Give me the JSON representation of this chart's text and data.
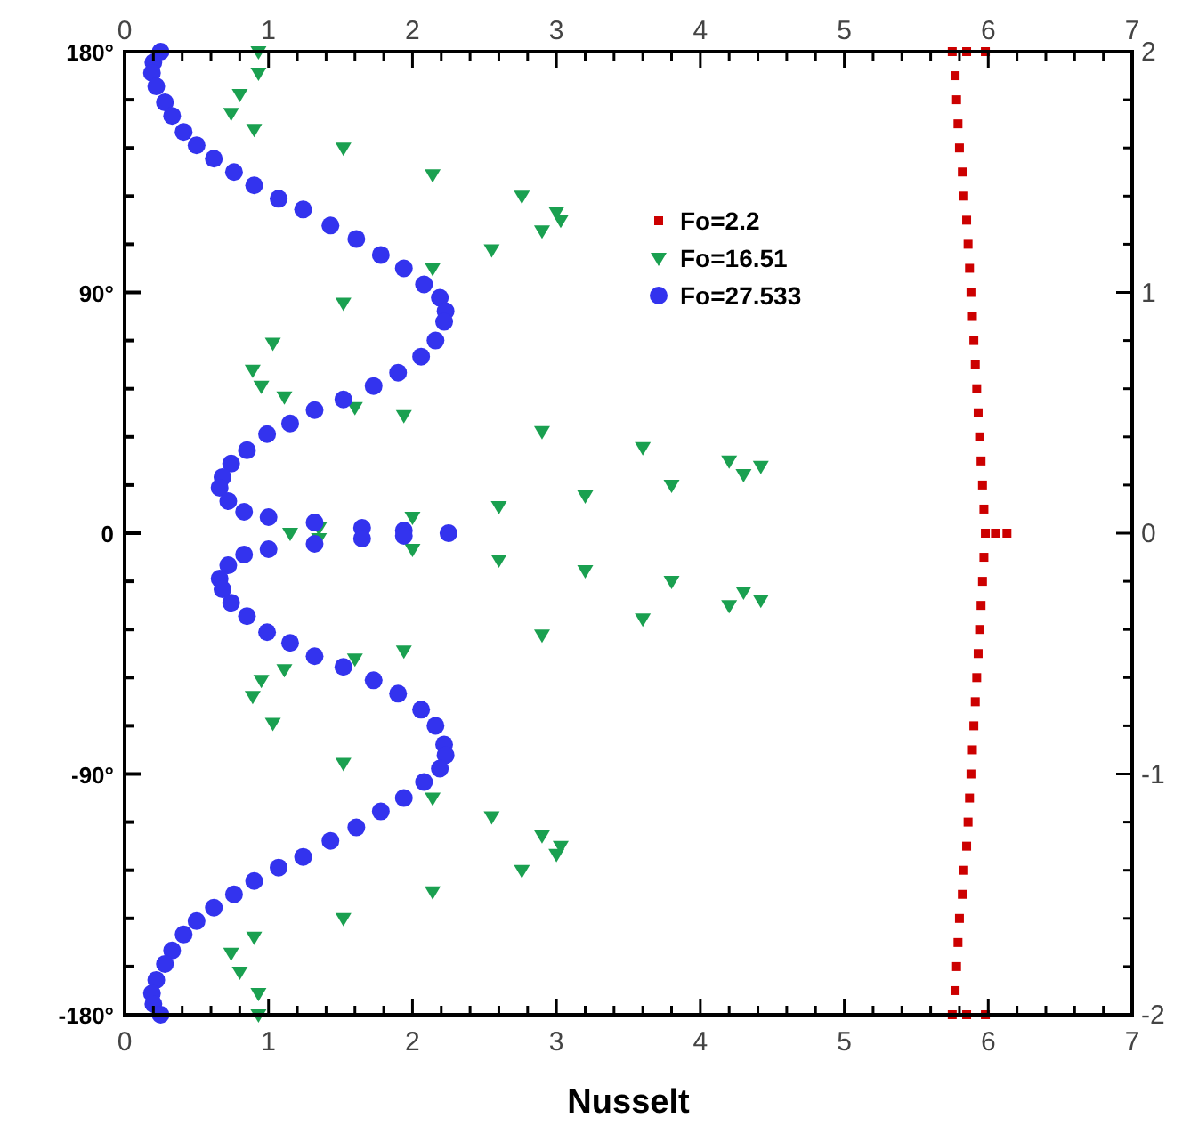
{
  "chart_data": {
    "type": "scatter",
    "xlabel": "Nusselt",
    "legend": "top",
    "grid": false,
    "xlim": [
      0,
      7
    ],
    "xticks": [
      0,
      {
        "value": 0.2,
        "label": null
      },
      {
        "value": 0.4,
        "label": null
      },
      {
        "value": 0.6,
        "label": null
      },
      {
        "value": 0.8,
        "label": null
      },
      1,
      {
        "value": 1.2,
        "label": null
      },
      {
        "value": 1.4,
        "label": null
      },
      {
        "value": 1.6,
        "label": null
      },
      {
        "value": 1.8,
        "label": null
      },
      2,
      {
        "value": 2.2,
        "label": null
      },
      {
        "value": 2.4,
        "label": null
      },
      {
        "value": 2.6,
        "label": null
      },
      {
        "value": 2.8,
        "label": null
      },
      3,
      {
        "value": 3.2,
        "label": null
      },
      {
        "value": 3.4,
        "label": null
      },
      {
        "value": 3.6,
        "label": null
      },
      {
        "value": 3.8,
        "label": null
      },
      4,
      {
        "value": 4.2,
        "label": null
      },
      {
        "value": 4.4,
        "label": null
      },
      {
        "value": 4.6,
        "label": null
      },
      {
        "value": 4.8,
        "label": null
      },
      5,
      {
        "value": 5.2,
        "label": null
      },
      {
        "value": 5.4,
        "label": null
      },
      {
        "value": 5.6,
        "label": null
      },
      {
        "value": 5.8,
        "label": null
      },
      6,
      {
        "value": 6.2,
        "label": null
      },
      {
        "value": 6.4,
        "label": null
      },
      {
        "value": 6.6,
        "label": null
      },
      {
        "value": 6.8,
        "label": null
      },
      7
    ],
    "x2lim": [
      0,
      7
    ],
    "x2ticks": [
      0,
      {
        "value": 0.2,
        "label": null
      },
      {
        "value": 0.4,
        "label": null
      },
      {
        "value": 0.6,
        "label": null
      },
      {
        "value": 0.8,
        "label": null
      },
      1,
      {
        "value": 1.2,
        "label": null
      },
      {
        "value": 1.4,
        "label": null
      },
      {
        "value": 1.6,
        "label": null
      },
      {
        "value": 1.8,
        "label": null
      },
      2,
      {
        "value": 2.2,
        "label": null
      },
      {
        "value": 2.4,
        "label": null
      },
      {
        "value": 2.6,
        "label": null
      },
      {
        "value": 2.8,
        "label": null
      },
      3,
      {
        "value": 3.2,
        "label": null
      },
      {
        "value": 3.4,
        "label": null
      },
      {
        "value": 3.6,
        "label": null
      },
      {
        "value": 3.8,
        "label": null
      },
      4,
      {
        "value": 4.2,
        "label": null
      },
      {
        "value": 4.4,
        "label": null
      },
      {
        "value": 4.6,
        "label": null
      },
      {
        "value": 4.8,
        "label": null
      },
      5,
      {
        "value": 5.2,
        "label": null
      },
      {
        "value": 5.4,
        "label": null
      },
      {
        "value": 5.6,
        "label": null
      },
      {
        "value": 5.8,
        "label": null
      },
      6,
      {
        "value": 6.2,
        "label": null
      },
      {
        "value": 6.4,
        "label": null
      },
      {
        "value": 6.6,
        "label": null
      },
      {
        "value": 6.8,
        "label": null
      },
      7
    ],
    "ylim": [
      -180,
      180
    ],
    "yticks": [
      {
        "value": -180,
        "label": "-180°"
      },
      {
        "value": -162,
        "label": null
      },
      {
        "value": -144,
        "label": null
      },
      {
        "value": -126,
        "label": null
      },
      {
        "value": -108,
        "label": null
      },
      {
        "value": -90,
        "label": "-90°"
      },
      {
        "value": -72,
        "label": null
      },
      {
        "value": -54,
        "label": null
      },
      {
        "value": -36,
        "label": null
      },
      {
        "value": -18,
        "label": null
      },
      0,
      {
        "value": 18,
        "label": null
      },
      {
        "value": 36,
        "label": null
      },
      {
        "value": 54,
        "label": null
      },
      {
        "value": 72,
        "label": null
      },
      {
        "value": 90,
        "label": "90°"
      },
      {
        "value": 108,
        "label": null
      },
      {
        "value": 126,
        "label": null
      },
      {
        "value": 144,
        "label": null
      },
      {
        "value": 162,
        "label": null
      },
      {
        "value": 180,
        "label": "180°"
      }
    ],
    "y2lim": [
      -2,
      2
    ],
    "y2ticks": [
      -2,
      {
        "value": -1.8,
        "label": null
      },
      {
        "value": -1.6,
        "label": null
      },
      {
        "value": -1.4,
        "label": null
      },
      {
        "value": -1.2,
        "label": null
      },
      -1,
      {
        "value": -0.8,
        "label": null
      },
      {
        "value": -0.6,
        "label": null
      },
      {
        "value": -0.4,
        "label": null
      },
      {
        "value": -0.2,
        "label": null
      },
      0,
      {
        "value": 0.2,
        "label": null
      },
      {
        "value": 0.4,
        "label": null
      },
      {
        "value": 0.6,
        "label": null
      },
      {
        "value": 0.8,
        "label": null
      },
      1,
      {
        "value": 1.2,
        "label": null
      },
      {
        "value": 1.4,
        "label": null
      },
      {
        "value": 1.6,
        "label": null
      },
      {
        "value": 1.8,
        "label": null
      },
      2
    ],
    "series": [
      {
        "name": "Fo=2.2",
        "color": "#cc0000",
        "marker": "square",
        "x": [
          5.75,
          5.85,
          5.98,
          5.77,
          5.78,
          5.79,
          5.8,
          5.82,
          5.83,
          5.85,
          5.86,
          5.87,
          5.88,
          5.89,
          5.9,
          5.91,
          5.92,
          5.93,
          5.94,
          5.95,
          5.96,
          5.97,
          5.98,
          6.05,
          6.13,
          5.97,
          5.96,
          5.95,
          5.94,
          5.93,
          5.92,
          5.91,
          5.9,
          5.89,
          5.88,
          5.87,
          5.86,
          5.85,
          5.83,
          5.82,
          5.8,
          5.79,
          5.78,
          5.77,
          5.75,
          5.85,
          5.98
        ],
        "values": [
          180,
          180,
          180,
          171,
          162,
          153,
          144,
          135,
          126,
          117,
          108,
          99,
          90,
          81,
          72,
          63,
          54,
          45,
          36,
          27,
          18,
          9,
          0,
          0,
          0,
          -9,
          -18,
          -27,
          -36,
          -45,
          -54,
          -63,
          -72,
          -81,
          -90,
          -99,
          -108,
          -117,
          -126,
          -135,
          -144,
          -153,
          -162,
          -171,
          -180,
          -180,
          -180
        ]
      },
      {
        "name": "Fo=16.51",
        "color": "#1aa050",
        "marker": "triangle",
        "x": [
          0.93,
          0.93,
          0.8,
          0.74,
          0.9,
          1.52,
          2.14,
          2.76,
          3.0,
          3.03,
          2.9,
          2.55,
          2.14,
          1.52,
          1.03,
          0.89,
          0.95,
          1.11,
          1.6,
          1.94,
          2.9,
          3.6,
          4.2,
          4.42,
          4.3,
          3.8,
          3.2,
          2.6,
          2.0,
          1.35,
          1.15,
          1.35,
          2.0,
          2.6,
          3.2,
          3.8,
          4.3,
          4.42,
          4.2,
          3.6,
          2.9,
          1.94,
          1.6,
          1.11,
          0.95,
          0.89,
          1.03,
          1.52,
          2.14,
          2.55,
          2.9,
          3.03,
          3.0,
          2.76,
          2.14,
          1.52,
          0.9,
          0.74,
          0.8,
          0.93,
          0.93
        ],
        "values": [
          180,
          172,
          164,
          157,
          151,
          144,
          134,
          126,
          120,
          117,
          113,
          106,
          99,
          86,
          71,
          61,
          55,
          51,
          47,
          44,
          38,
          32,
          27,
          25,
          22,
          18,
          14,
          10,
          6,
          2,
          0,
          -2,
          -6,
          -10,
          -14,
          -18,
          -22,
          -25,
          -27,
          -32,
          -38,
          -44,
          -47,
          -51,
          -55,
          -61,
          -71,
          -86,
          -99,
          -106,
          -113,
          -117,
          -120,
          -126,
          -134,
          -144,
          -151,
          -157,
          -164,
          -172,
          -180
        ]
      },
      {
        "name": "Fo=27.533",
        "color": "#3333ee",
        "marker": "circle",
        "x": [
          0.25,
          0.2,
          0.19,
          0.22,
          0.28,
          0.33,
          0.41,
          0.5,
          0.62,
          0.76,
          0.9,
          1.07,
          1.24,
          1.43,
          1.61,
          1.78,
          1.94,
          2.08,
          2.19,
          2.23,
          2.22,
          2.16,
          2.06,
          1.9,
          1.73,
          1.52,
          1.32,
          1.15,
          0.99,
          0.85,
          0.74,
          0.68,
          0.66,
          0.72,
          0.83,
          1.0,
          1.32,
          1.65,
          1.94,
          2.25,
          1.94,
          1.65,
          1.32,
          1.0,
          0.83,
          0.72,
          0.66,
          0.68,
          0.74,
          0.85,
          0.99,
          1.15,
          1.32,
          1.52,
          1.73,
          1.9,
          2.06,
          2.16,
          2.22,
          2.23,
          2.19,
          2.08,
          1.94,
          1.78,
          1.61,
          1.43,
          1.24,
          1.07,
          0.9,
          0.76,
          0.62,
          0.5,
          0.41,
          0.33,
          0.28,
          0.22,
          0.19,
          0.2,
          0.25
        ],
        "values": [
          180,
          176,
          172,
          167,
          161,
          156,
          150,
          145,
          140,
          135,
          130,
          125,
          121,
          115,
          110,
          104,
          99,
          93,
          88,
          83,
          79,
          72,
          66,
          60,
          55,
          50,
          46,
          41,
          37,
          31,
          26,
          21,
          17,
          12,
          8,
          6,
          4,
          2,
          1,
          0,
          -1,
          -2,
          -4,
          -6,
          -8,
          -12,
          -17,
          -21,
          -26,
          -31,
          -37,
          -41,
          -46,
          -50,
          -55,
          -60,
          -66,
          -72,
          -79,
          -83,
          -88,
          -93,
          -99,
          -104,
          -110,
          -115,
          -121,
          -125,
          -130,
          -135,
          -140,
          -145,
          -150,
          -156,
          -161,
          -167,
          -172,
          -176,
          -180
        ]
      }
    ]
  }
}
